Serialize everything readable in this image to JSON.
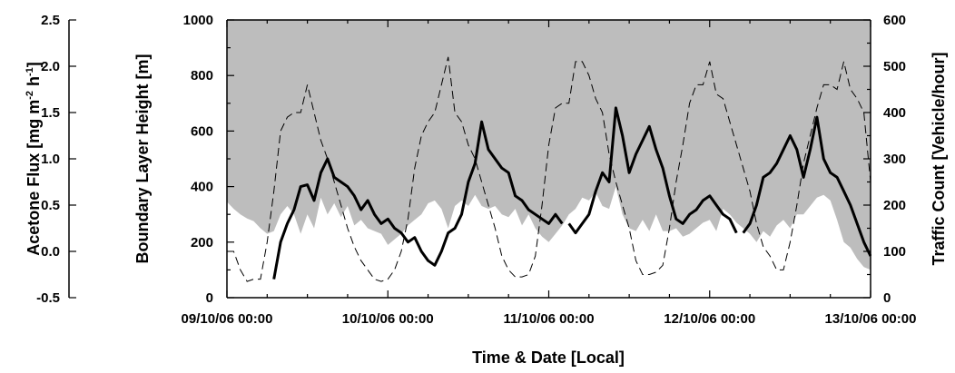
{
  "chart_data": {
    "type": "line",
    "xlabel": "Time & Date [Local]",
    "x_ticks": [
      "09/10/06 00:00",
      "10/10/06 00:00",
      "11/10/06 00:00",
      "12/10/06 00:00",
      "13/10/06 00:00"
    ],
    "xlim_hours": [
      0,
      96
    ],
    "axes": {
      "acetone": {
        "label": "Acetone Flux [mg m-2 h-1]",
        "label_main": "Acetone Flux [mg m",
        "label_sup1": "-2",
        "label_mid": " h",
        "label_sup2": "-1",
        "label_end": "]",
        "ticks": [
          "-0.5",
          "0.0",
          "0.5",
          "1.0",
          "1.5",
          "2.0",
          "2.5"
        ],
        "ylim": [
          -0.5,
          2.5
        ]
      },
      "boundary": {
        "label": "Boundary Layer Height [m]",
        "ticks": [
          "0",
          "200",
          "400",
          "600",
          "800",
          "1000"
        ],
        "ylim": [
          0,
          1000
        ]
      },
      "traffic": {
        "label": "Traffic Count [Vehicle/hour]",
        "ticks": [
          "0",
          "100",
          "200",
          "300",
          "400",
          "500",
          "600"
        ],
        "ylim": [
          0,
          600
        ]
      }
    },
    "series": [
      {
        "style": "grey area",
        "axis": "boundary",
        "x_hours": [
          0,
          1,
          2,
          3,
          4,
          5,
          6,
          7,
          8,
          9,
          10,
          11,
          12,
          13,
          14,
          15,
          16,
          17,
          18,
          19,
          20,
          21,
          22,
          23,
          24,
          25,
          26,
          27,
          28,
          29,
          30,
          31,
          32,
          33,
          34,
          35,
          36,
          37,
          38,
          39,
          40,
          41,
          42,
          43,
          44,
          45,
          46,
          47,
          48,
          49,
          50,
          51,
          52,
          53,
          54,
          55,
          56,
          57,
          58,
          59,
          60,
          61,
          62,
          63,
          64,
          65,
          66,
          67,
          68,
          69,
          70,
          71,
          72,
          73,
          74,
          75,
          76,
          77,
          78,
          79,
          80,
          81,
          82,
          83,
          84,
          85,
          86,
          87,
          88,
          89,
          90,
          91,
          92,
          93,
          94,
          95,
          96
        ],
        "values": [
          345,
          320,
          300,
          285,
          275,
          250,
          230,
          240,
          300,
          330,
          300,
          230,
          300,
          250,
          360,
          300,
          340,
          290,
          330,
          260,
          280,
          250,
          240,
          230,
          190,
          210,
          230,
          260,
          280,
          300,
          340,
          350,
          320,
          250,
          330,
          350,
          330,
          370,
          330,
          320,
          330,
          300,
          290,
          320,
          260,
          300,
          250,
          220,
          200,
          230,
          260,
          300,
          320,
          360,
          350,
          380,
          330,
          320,
          400,
          300,
          250,
          240,
          280,
          240,
          300,
          240,
          240,
          250,
          220,
          230,
          250,
          270,
          280,
          240,
          320,
          300,
          270,
          250,
          230,
          200,
          240,
          220,
          260,
          280,
          250,
          300,
          300,
          330,
          360,
          370,
          350,
          280,
          200,
          180,
          140,
          110,
          100
        ]
      },
      {
        "style": "dashed",
        "axis": "traffic",
        "x_hours": [
          0,
          1,
          2,
          3,
          4,
          5,
          6,
          7,
          8,
          9,
          10,
          11,
          12,
          13,
          14,
          15,
          16,
          17,
          18,
          19,
          20,
          21,
          22,
          23,
          24,
          25,
          26,
          27,
          28,
          29,
          30,
          31,
          32,
          33,
          34,
          35,
          36,
          37,
          38,
          39,
          40,
          41,
          42,
          43,
          44,
          45,
          46,
          47,
          48,
          49,
          50,
          51,
          52,
          53,
          54,
          55,
          56,
          57,
          58,
          59,
          60,
          61,
          62,
          63,
          64,
          65,
          66,
          67,
          68,
          69,
          70,
          71,
          72,
          73,
          74,
          75,
          76,
          77,
          78,
          79,
          80,
          81,
          82,
          83,
          84,
          85,
          86,
          87,
          88,
          89,
          90,
          91,
          92,
          93,
          94,
          95,
          96
        ],
        "values": [
          100,
          100,
          60,
          35,
          40,
          40,
          120,
          230,
          360,
          390,
          400,
          400,
          460,
          400,
          340,
          300,
          250,
          200,
          150,
          110,
          80,
          60,
          40,
          35,
          40,
          60,
          100,
          170,
          280,
          350,
          380,
          400,
          460,
          520,
          400,
          380,
          330,
          300,
          250,
          200,
          150,
          90,
          60,
          45,
          45,
          50,
          90,
          200,
          330,
          410,
          420,
          420,
          510,
          510,
          480,
          430,
          400,
          310,
          250,
          200,
          150,
          80,
          50,
          50,
          55,
          70,
          150,
          250,
          330,
          420,
          460,
          460,
          510,
          440,
          430,
          380,
          330,
          280,
          230,
          160,
          110,
          90,
          60,
          60,
          120,
          200,
          290,
          350,
          410,
          460,
          460,
          450,
          510,
          450,
          430,
          400,
          250
        ]
      },
      {
        "style": "solid bold",
        "axis": "acetone",
        "segments": [
          {
            "x_hours": [
              7,
              8,
              9,
              10,
              11,
              12,
              13,
              14,
              15,
              16,
              17,
              18,
              19,
              20,
              21,
              22,
              23,
              24,
              25,
              26,
              27,
              28,
              29,
              30,
              31,
              32,
              33,
              34,
              35,
              36,
              37,
              38,
              39,
              40,
              41,
              42,
              43,
              44,
              45,
              46,
              47,
              48,
              49,
              50
            ],
            "values": [
              -0.3,
              0.1,
              0.3,
              0.45,
              0.7,
              0.72,
              0.55,
              0.85,
              1.0,
              0.8,
              0.75,
              0.7,
              0.6,
              0.45,
              0.55,
              0.4,
              0.3,
              0.35,
              0.25,
              0.2,
              0.1,
              0.15,
              0.0,
              -0.1,
              -0.15,
              0.0,
              0.2,
              0.25,
              0.4,
              0.75,
              0.95,
              1.4,
              1.1,
              1.0,
              0.9,
              0.85,
              0.6,
              0.55,
              0.45,
              0.4,
              0.35,
              0.3,
              0.4,
              0.3
            ]
          },
          {
            "x_hours": [
              51,
              52,
              53,
              54,
              55,
              56,
              57,
              58,
              59,
              60,
              61,
              62,
              63,
              64,
              65,
              66,
              67,
              68,
              69,
              70,
              71,
              72,
              73,
              74,
              75,
              76
            ],
            "values": [
              0.3,
              0.2,
              0.3,
              0.4,
              0.65,
              0.85,
              0.75,
              1.55,
              1.25,
              0.85,
              1.05,
              1.2,
              1.35,
              1.1,
              0.9,
              0.6,
              0.35,
              0.3,
              0.4,
              0.45,
              0.55,
              0.6,
              0.5,
              0.4,
              0.35,
              0.2
            ]
          },
          {
            "x_hours": [
              77,
              78,
              79,
              80,
              81,
              82,
              83,
              84,
              85,
              86,
              87,
              88,
              89,
              90,
              91,
              92,
              93,
              94,
              95,
              96
            ],
            "values": [
              0.2,
              0.3,
              0.5,
              0.8,
              0.85,
              0.95,
              1.1,
              1.25,
              1.1,
              0.8,
              1.1,
              1.45,
              1.0,
              0.85,
              0.8,
              0.65,
              0.5,
              0.3,
              0.1,
              -0.05
            ]
          }
        ]
      }
    ]
  }
}
